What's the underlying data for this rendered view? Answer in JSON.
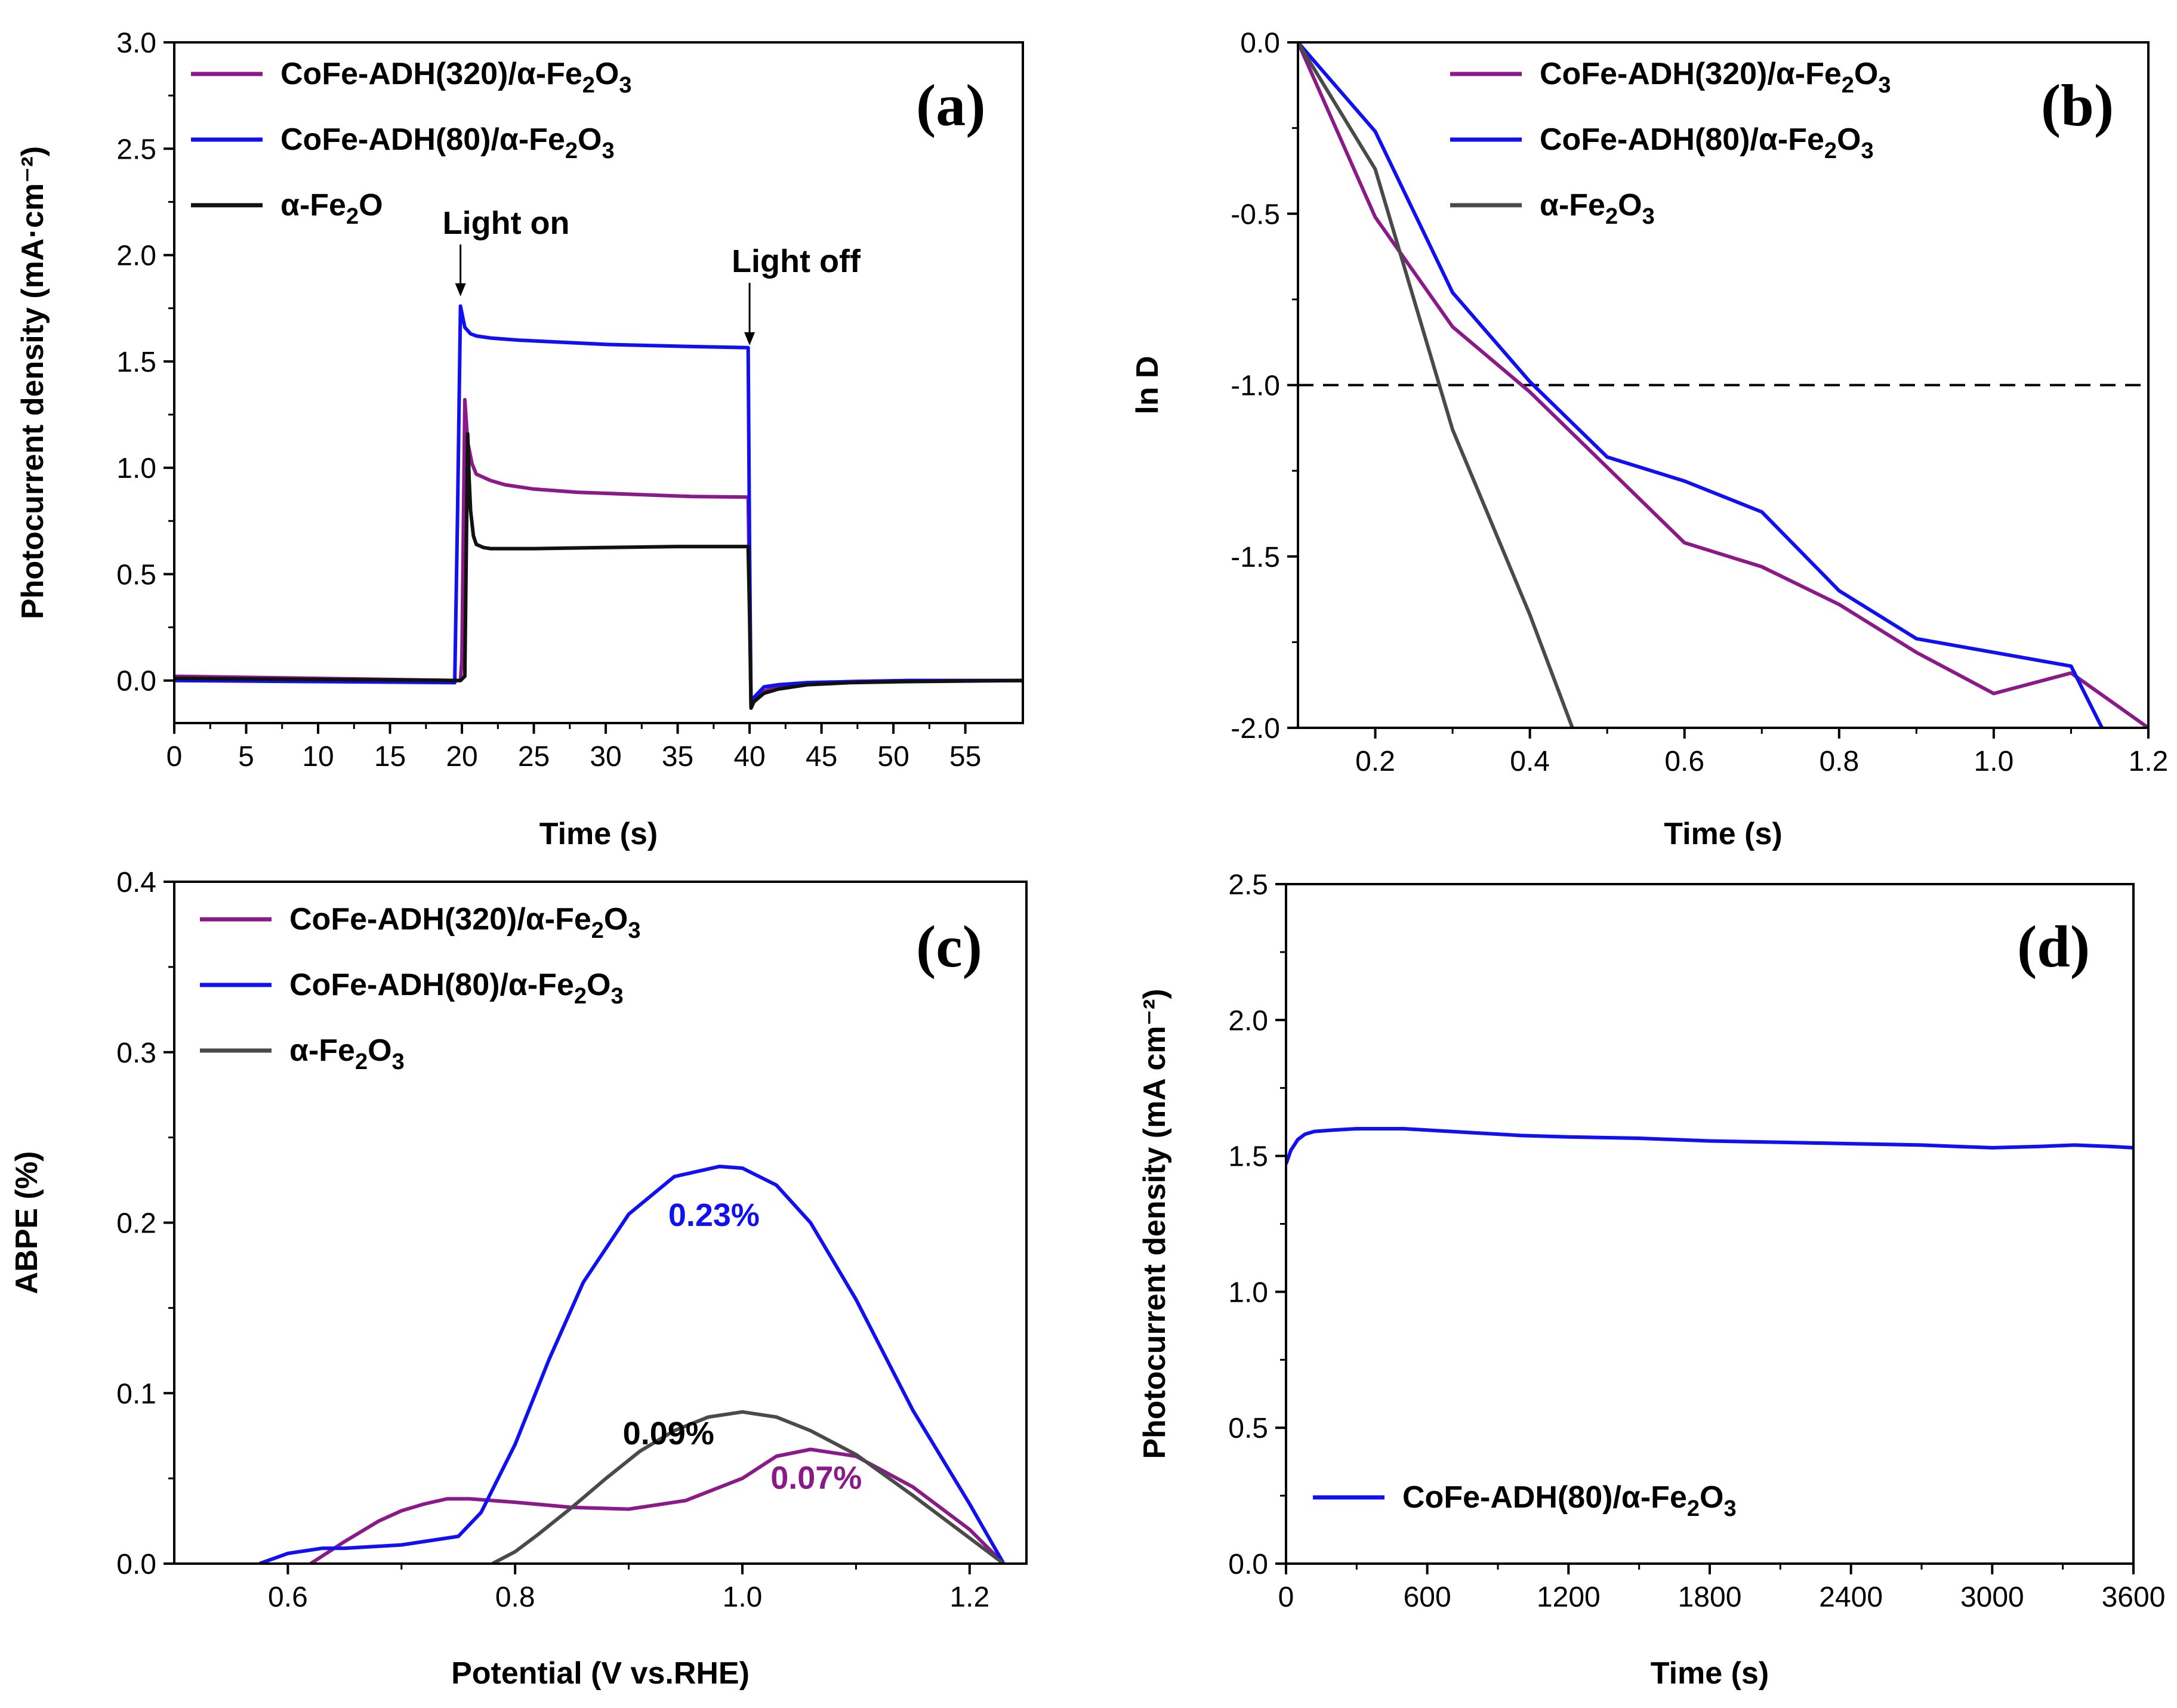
{
  "chart_data": [
    {
      "id": "a",
      "type": "line",
      "panel_label": "(a)",
      "xlabel": "Time (s)",
      "ylabel": "Photocurrent density (mA·cm⁻²)",
      "xlim": [
        0,
        59
      ],
      "ylim": [
        -0.2,
        3.0
      ],
      "xticks": [
        0,
        5,
        10,
        15,
        20,
        25,
        30,
        35,
        40,
        45,
        50,
        55
      ],
      "yticks": [
        0.0,
        0.5,
        1.0,
        1.5,
        2.0,
        2.5,
        3.0
      ],
      "legend_position": "top-left",
      "series": [
        {
          "name": "CoFe-ADH(320)/α-Fe2O3",
          "legend": {
            "main": "CoFe-ADH(320)/α-Fe",
            "sub1": "2",
            "mid": "O",
            "sub2": "3"
          },
          "color": "#8B1A89",
          "x": [
            0,
            10,
            19.9,
            20.0,
            20.2,
            20.4,
            20.7,
            21,
            22,
            23,
            25,
            28,
            32,
            36,
            39.9,
            40.0,
            40.1,
            40.3,
            41,
            42,
            44,
            47,
            51,
            59
          ],
          "y": [
            0.02,
            0.01,
            0.0,
            0.1,
            1.32,
            1.12,
            1.02,
            0.97,
            0.94,
            0.92,
            0.9,
            0.885,
            0.875,
            0.865,
            0.862,
            0.4,
            -0.12,
            -0.1,
            -0.05,
            -0.03,
            -0.015,
            -0.005,
            0.0,
            0.0
          ]
        },
        {
          "name": "CoFe-ADH(80)/α-Fe2O3",
          "legend": {
            "main": "CoFe-ADH(80)/α-Fe",
            "sub1": "2",
            "mid": "O",
            "sub2": "3"
          },
          "color": "#1010F0",
          "x": [
            0,
            10,
            19.5,
            19.7,
            19.9,
            20.2,
            20.6,
            21,
            22,
            24,
            27,
            30,
            33,
            36,
            39.9,
            40.0,
            40.1,
            40.3,
            41,
            42,
            44,
            47,
            51,
            59
          ],
          "y": [
            0.0,
            -0.005,
            -0.01,
            0.8,
            1.76,
            1.66,
            1.63,
            1.62,
            1.61,
            1.6,
            1.59,
            1.58,
            1.575,
            1.57,
            1.565,
            0.6,
            -0.1,
            -0.08,
            -0.03,
            -0.02,
            -0.01,
            -0.005,
            0.0,
            0.0
          ]
        },
        {
          "name": "α-Fe2O",
          "legend": {
            "main": "α-Fe",
            "sub1": "2",
            "mid": "O",
            "sub2": ""
          },
          "color": "#111111",
          "x": [
            0,
            10,
            19.9,
            20.2,
            20.4,
            20.5,
            20.6,
            20.8,
            21.0,
            21.5,
            22,
            25,
            30,
            35,
            39.9,
            40.0,
            40.1,
            40.3,
            41,
            42,
            44,
            47,
            51,
            59
          ],
          "y": [
            0.01,
            0.005,
            0.0,
            0.02,
            1.16,
            0.95,
            0.8,
            0.68,
            0.64,
            0.625,
            0.62,
            0.62,
            0.625,
            0.63,
            0.63,
            0.3,
            -0.13,
            -0.1,
            -0.06,
            -0.04,
            -0.02,
            -0.01,
            -0.005,
            0.0
          ]
        }
      ],
      "annotations": [
        {
          "text": "Light on",
          "x": 19.9,
          "y_text": 2.1,
          "arrow_to_y": 1.8
        },
        {
          "text": "Light off",
          "x": 40.0,
          "y_text": 1.92,
          "arrow_to_y": 1.57
        }
      ]
    },
    {
      "id": "b",
      "type": "line",
      "panel_label": "(b)",
      "xlabel": "Time (s)",
      "ylabel": "ln D",
      "xlim": [
        0.1,
        1.2
      ],
      "ylim": [
        -2.0,
        0.0
      ],
      "xticks": [
        0.2,
        0.4,
        0.6,
        0.8,
        1.0,
        1.2
      ],
      "yticks": [
        -2.0,
        -1.5,
        -1.0,
        -0.5,
        0.0
      ],
      "ref_line_y": -1.0,
      "legend_position": "top-center",
      "series": [
        {
          "name": "CoFe-ADH(320)/α-Fe2O3",
          "legend": {
            "main": "CoFe-ADH(320)/α-Fe",
            "sub1": "2",
            "mid": "O",
            "sub2": "3"
          },
          "color": "#8B1A89",
          "x": [
            0.1,
            0.2,
            0.3,
            0.4,
            0.5,
            0.6,
            0.7,
            0.8,
            0.9,
            1.0,
            1.1,
            1.2
          ],
          "y": [
            0.0,
            -0.51,
            -0.83,
            -1.02,
            -1.24,
            -1.46,
            -1.53,
            -1.64,
            -1.78,
            -1.9,
            -1.84,
            -2.0
          ]
        },
        {
          "name": "CoFe-ADH(80)/α-Fe2O3",
          "legend": {
            "main": "CoFe-ADH(80)/α-Fe",
            "sub1": "2",
            "mid": "O",
            "sub2": "3"
          },
          "color": "#1010F0",
          "x": [
            0.1,
            0.2,
            0.3,
            0.4,
            0.5,
            0.6,
            0.7,
            0.8,
            0.9,
            1.0,
            1.1,
            1.14
          ],
          "y": [
            0.0,
            -0.26,
            -0.73,
            -0.99,
            -1.21,
            -1.28,
            -1.37,
            -1.6,
            -1.74,
            -1.78,
            -1.82,
            -2.0
          ]
        },
        {
          "name": "α-Fe2O3",
          "legend": {
            "main": "α-Fe",
            "sub1": "2",
            "mid": "O",
            "sub2": "3"
          },
          "color": "#4A4A4A",
          "x": [
            0.1,
            0.2,
            0.3,
            0.4,
            0.455
          ],
          "y": [
            0.0,
            -0.37,
            -1.13,
            -1.67,
            -2.0
          ]
        }
      ]
    },
    {
      "id": "c",
      "type": "line",
      "panel_label": "(c)",
      "xlabel": "Potential (V vs.RHE)",
      "ylabel": "ABPE (%)",
      "xlim": [
        0.5,
        1.25
      ],
      "ylim": [
        0.0,
        0.4
      ],
      "xticks": [
        0.6,
        0.8,
        1.0,
        1.2
      ],
      "yticks": [
        0.0,
        0.1,
        0.2,
        0.3,
        0.4
      ],
      "legend_position": "top-left",
      "series": [
        {
          "name": "CoFe-ADH(320)/α-Fe2O3",
          "legend": {
            "main": "CoFe-ADH(320)/α-Fe",
            "sub1": "2",
            "mid": "O",
            "sub2": "3"
          },
          "color": "#8B1A89",
          "x": [
            0.62,
            0.65,
            0.68,
            0.7,
            0.72,
            0.74,
            0.76,
            0.8,
            0.85,
            0.9,
            0.95,
            1.0,
            1.03,
            1.06,
            1.1,
            1.15,
            1.2,
            1.23
          ],
          "y": [
            0.0,
            0.013,
            0.025,
            0.031,
            0.035,
            0.038,
            0.038,
            0.036,
            0.033,
            0.032,
            0.037,
            0.05,
            0.063,
            0.067,
            0.063,
            0.045,
            0.02,
            0.0
          ]
        },
        {
          "name": "CoFe-ADH(80)/α-Fe2O3",
          "legend": {
            "main": "CoFe-ADH(80)/α-Fe",
            "sub1": "2",
            "mid": "O",
            "sub2": "3"
          },
          "color": "#1010F0",
          "x": [
            0.575,
            0.6,
            0.63,
            0.65,
            0.7,
            0.75,
            0.77,
            0.8,
            0.83,
            0.86,
            0.9,
            0.94,
            0.98,
            1.0,
            1.03,
            1.06,
            1.1,
            1.15,
            1.2,
            1.23
          ],
          "y": [
            0.0,
            0.006,
            0.009,
            0.009,
            0.011,
            0.016,
            0.03,
            0.07,
            0.12,
            0.165,
            0.205,
            0.227,
            0.233,
            0.232,
            0.222,
            0.2,
            0.155,
            0.09,
            0.035,
            0.0
          ]
        },
        {
          "name": "α-Fe2O3",
          "legend": {
            "main": "α-Fe",
            "sub1": "2",
            "mid": "O",
            "sub2": "3"
          },
          "color": "#4A4A4A",
          "x": [
            0.78,
            0.8,
            0.82,
            0.85,
            0.88,
            0.91,
            0.94,
            0.97,
            1.0,
            1.03,
            1.06,
            1.1,
            1.15,
            1.2,
            1.23
          ],
          "y": [
            0.0,
            0.007,
            0.017,
            0.033,
            0.05,
            0.066,
            0.078,
            0.086,
            0.089,
            0.086,
            0.078,
            0.064,
            0.04,
            0.015,
            0.0
          ]
        }
      ],
      "annotations": [
        {
          "text": "0.23%",
          "x": 0.975,
          "y": 0.198,
          "color": "#1010F0"
        },
        {
          "text": "0.09%",
          "x": 0.935,
          "y": 0.07,
          "color": "#000000"
        },
        {
          "text": "0.07%",
          "x": 1.065,
          "y": 0.044,
          "color": "#8B1A89"
        }
      ]
    },
    {
      "id": "d",
      "type": "line",
      "panel_label": "(d)",
      "xlabel": "Time (s)",
      "ylabel": "Photocurrent density (mA cm⁻²)",
      "xlim": [
        0,
        3600
      ],
      "ylim": [
        0.0,
        2.5
      ],
      "xticks": [
        0,
        600,
        1200,
        1800,
        2400,
        3000,
        3600
      ],
      "yticks": [
        0.0,
        0.5,
        1.0,
        1.5,
        2.0,
        2.5
      ],
      "legend_position": "bottom-left",
      "series": [
        {
          "name": "CoFe-ADH(80)/α-Fe2O3",
          "legend": {
            "main": "CoFe-ADH(80)/α-Fe",
            "sub1": "2",
            "mid": "O",
            "sub2": "3"
          },
          "color": "#1010F0",
          "x": [
            0,
            20,
            50,
            80,
            120,
            200,
            300,
            400,
            500,
            600,
            800,
            1000,
            1200,
            1500,
            1800,
            2100,
            2400,
            2700,
            2850,
            3000,
            3200,
            3350,
            3500,
            3600
          ],
          "y": [
            1.47,
            1.52,
            1.56,
            1.58,
            1.59,
            1.595,
            1.6,
            1.6,
            1.6,
            1.595,
            1.585,
            1.575,
            1.57,
            1.565,
            1.555,
            1.55,
            1.545,
            1.54,
            1.535,
            1.53,
            1.535,
            1.54,
            1.535,
            1.53
          ]
        }
      ]
    }
  ]
}
